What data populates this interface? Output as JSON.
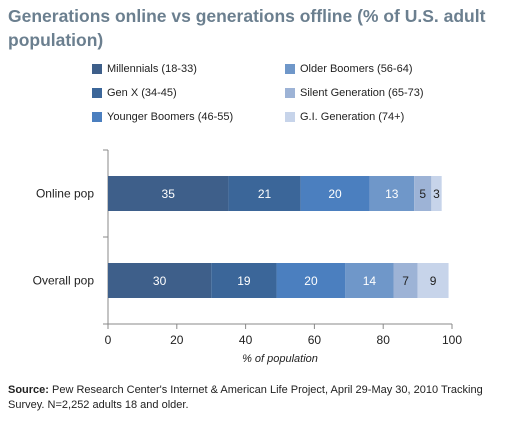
{
  "chart_data": {
    "type": "bar",
    "orientation": "horizontal",
    "stacked": true,
    "title": "Generations online vs generations offline (% of U.S. adult population)",
    "categories": [
      "Online pop",
      "Overall pop"
    ],
    "series": [
      {
        "name": "Millennials (18-33)",
        "values": [
          35,
          30
        ],
        "color": "#3e5f8a"
      },
      {
        "name": "Gen X (34-45)",
        "values": [
          21,
          19
        ],
        "color": "#3b6699"
      },
      {
        "name": "Younger Boomers (46-55)",
        "values": [
          20,
          20
        ],
        "color": "#4b7fbf"
      },
      {
        "name": "Older Boomers (56-64)",
        "values": [
          13,
          14
        ],
        "color": "#6f97c9"
      },
      {
        "name": "Silent Generation (65-73)",
        "values": [
          5,
          7
        ],
        "color": "#9db3d6"
      },
      {
        "name": "G.I. Generation (74+)",
        "values": [
          3,
          9
        ],
        "color": "#c7d4ea"
      }
    ],
    "xlabel": "% of population",
    "ylabel": "",
    "xlim": [
      0,
      100
    ],
    "xticks": [
      "0",
      "20",
      "40",
      "60",
      "80",
      "100"
    ],
    "legend_placement": "top",
    "grid": false
  },
  "source": {
    "label": "Source:",
    "text": "Pew Research Center's Internet & American Life Project, April 29-May 30, 2010 Tracking Survey. N=2,252 adults 18 and older."
  }
}
